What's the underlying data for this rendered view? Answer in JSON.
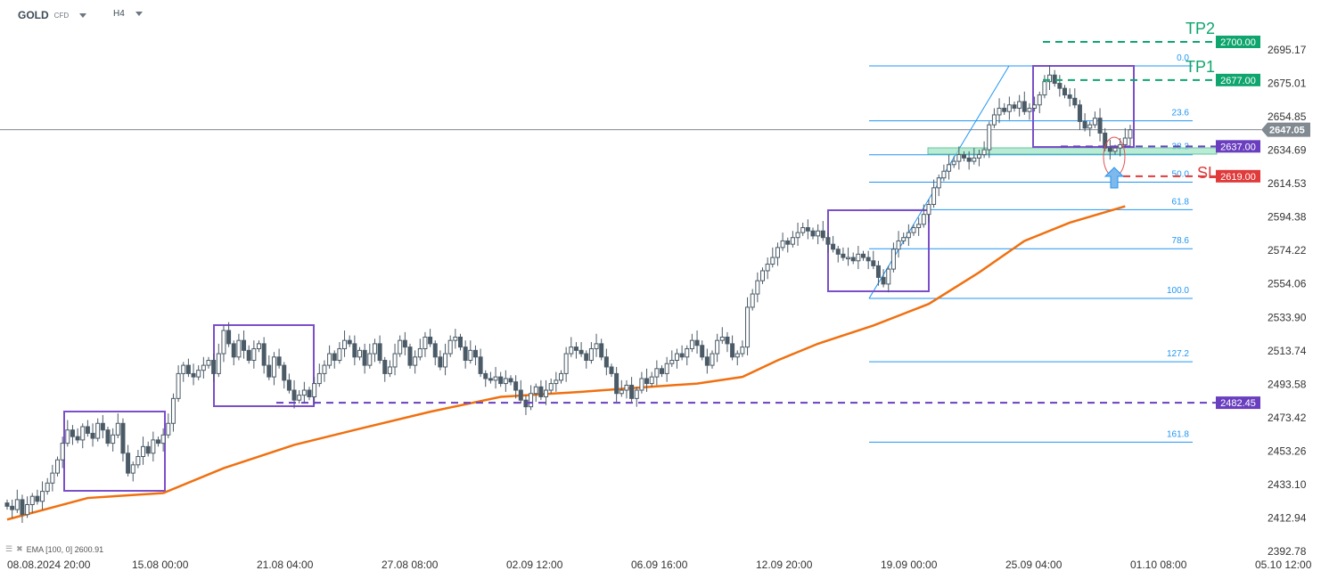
{
  "header": {
    "symbol": "GOLD",
    "instrument_type": "CFD",
    "timeframe": "H4"
  },
  "indicator": {
    "label": "EMA [100,  0] 2600.91",
    "icons": [
      "layers-icon",
      "close-icon"
    ]
  },
  "colors": {
    "bull_fill": "#ffffff",
    "bear_fill": "#4a5a66",
    "candle_stroke": "#4a5a66",
    "ema": "#f07010",
    "box": "#7b4fc9",
    "fib": "#2196f3",
    "tp": "#0fa56e",
    "sl": "#e03a3a",
    "level_purple": "#6a3fbf",
    "zone": "#9ee3c5",
    "current": "#808a90"
  },
  "chart_data": {
    "type": "candlestick",
    "symbol": "GOLD",
    "timeframe": "H4",
    "ylim": [
      2392.78,
      2705
    ],
    "y_ticks": [
      "2695.17",
      "2675.01",
      "2654.85",
      "2634.69",
      "2614.53",
      "2594.38",
      "2574.22",
      "2554.06",
      "2533.90",
      "2513.74",
      "2493.58",
      "2473.42",
      "2453.26",
      "2433.10",
      "2412.94",
      "2392.78"
    ],
    "x_ticks": [
      "08.08.2024  20:00",
      "15.08  00:00",
      "21.08  04:00",
      "27.08  08:00",
      "02.09  12:00",
      "06.09  16:00",
      "12.09  20:00",
      "19.09  00:00",
      "25.09  04:00",
      "01.10  08:00",
      "05.10  12:00"
    ],
    "close": [
      2420,
      2418,
      2424,
      2415,
      2421,
      2426,
      2423,
      2429,
      2434,
      2440,
      2448,
      2458,
      2466,
      2462,
      2460,
      2468,
      2464,
      2461,
      2470,
      2466,
      2458,
      2463,
      2470,
      2452,
      2440,
      2445,
      2450,
      2456,
      2452,
      2460,
      2458,
      2463,
      2470,
      2485,
      2500,
      2505,
      2500,
      2498,
      2502,
      2505,
      2508,
      2500,
      2512,
      2526,
      2518,
      2510,
      2520,
      2514,
      2508,
      2515,
      2518,
      2505,
      2498,
      2510,
      2505,
      2496,
      2490,
      2484,
      2487,
      2490,
      2486,
      2494,
      2500,
      2505,
      2512,
      2508,
      2515,
      2520,
      2518,
      2510,
      2514,
      2505,
      2512,
      2518,
      2508,
      2500,
      2504,
      2512,
      2520,
      2516,
      2505,
      2510,
      2515,
      2522,
      2518,
      2510,
      2504,
      2512,
      2520,
      2522,
      2516,
      2508,
      2514,
      2510,
      2500,
      2497,
      2496,
      2498,
      2494,
      2497,
      2495,
      2490,
      2484,
      2480,
      2488,
      2492,
      2486,
      2490,
      2494,
      2496,
      2500,
      2512,
      2516,
      2514,
      2512,
      2508,
      2515,
      2518,
      2510,
      2504,
      2500,
      2488,
      2490,
      2493,
      2485,
      2490,
      2497,
      2494,
      2498,
      2503,
      2500,
      2506,
      2508,
      2512,
      2510,
      2515,
      2520,
      2517,
      2510,
      2505,
      2512,
      2520,
      2522,
      2518,
      2510,
      2512,
      2516,
      2540,
      2548,
      2556,
      2562,
      2566,
      2570,
      2576,
      2580,
      2578,
      2582,
      2585,
      2588,
      2586,
      2583,
      2586,
      2582,
      2578,
      2575,
      2572,
      2570,
      2570,
      2568,
      2572,
      2570,
      2568,
      2565,
      2558,
      2554,
      2563,
      2575,
      2580,
      2582,
      2585,
      2588,
      2590,
      2596,
      2602,
      2612,
      2618,
      2622,
      2626,
      2628,
      2632,
      2630,
      2628,
      2630,
      2632,
      2635,
      2650,
      2656,
      2660,
      2658,
      2662,
      2660,
      2664,
      2658,
      2660,
      2662,
      2668,
      2676,
      2680,
      2675,
      2672,
      2668,
      2666,
      2662,
      2652,
      2648,
      2650,
      2654,
      2645,
      2636,
      2634,
      2636,
      2638,
      2642,
      2647
    ],
    "ema": {
      "name": "EMA [100, 0]",
      "last": 2600.91,
      "points": [
        [
          0,
          2412
        ],
        [
          16,
          2425
        ],
        [
          31,
          2428
        ],
        [
          43,
          2443
        ],
        [
          57,
          2457
        ],
        [
          69,
          2466
        ],
        [
          84,
          2477
        ],
        [
          98,
          2486
        ],
        [
          114,
          2489
        ],
        [
          123,
          2491
        ],
        [
          137,
          2494
        ],
        [
          146,
          2498
        ],
        [
          153,
          2508
        ],
        [
          161,
          2518
        ],
        [
          172,
          2529
        ],
        [
          183,
          2542
        ],
        [
          193,
          2561
        ],
        [
          202,
          2580
        ],
        [
          211,
          2591
        ],
        [
          222,
          2600.91
        ]
      ]
    },
    "current_price": "2647.05",
    "levels": [
      {
        "label": "TP2",
        "price": "2700.00",
        "color": "tp"
      },
      {
        "label": "TP1",
        "price": "2677.00",
        "color": "tp"
      },
      {
        "label": "",
        "price": "2637.00",
        "color": "level_purple"
      },
      {
        "label": "SL",
        "price": "2619.00",
        "color": "sl"
      },
      {
        "label": "",
        "price": "2482.45",
        "color": "level_purple"
      }
    ],
    "fibonacci": {
      "from": 2545.3,
      "to": 2685.5,
      "levels": [
        "0.0",
        "23.6",
        "38.2",
        "50.0",
        "61.8",
        "78.6",
        "100.0",
        "127.2",
        "161.8"
      ]
    }
  }
}
